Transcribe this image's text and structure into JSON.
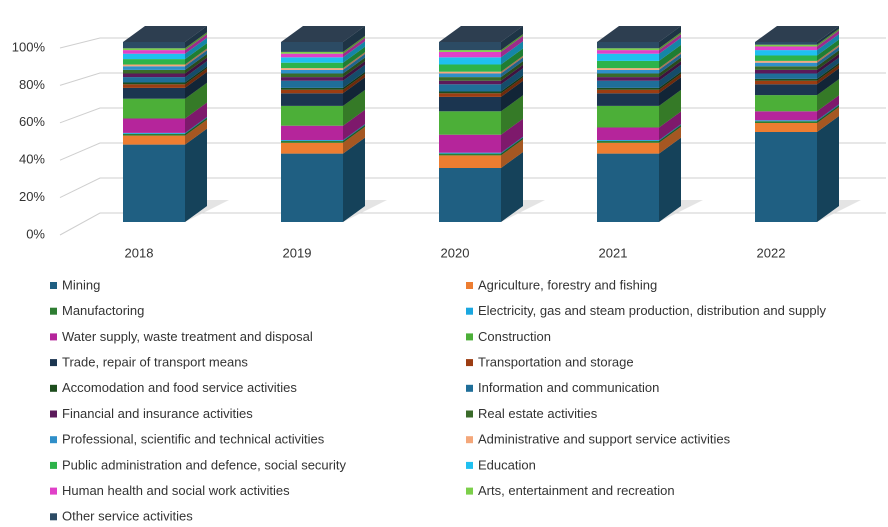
{
  "chart_data": {
    "type": "bar3d_stacked",
    "categories": [
      "2018",
      "2019",
      "2020",
      "2021",
      "2022"
    ],
    "ylim": [
      0,
      100
    ],
    "yticks": [
      {
        "value": 0,
        "label": "0%"
      },
      {
        "value": 20,
        "label": "20%"
      },
      {
        "value": 40,
        "label": "40%"
      },
      {
        "value": 60,
        "label": "60%"
      },
      {
        "value": 80,
        "label": "80%"
      },
      {
        "value": 100,
        "label": "100%"
      }
    ],
    "grid": true,
    "legend": "bottom",
    "series": [
      {
        "name": "Mining",
        "color": "#1f5f82",
        "values": [
          43,
          38,
          30,
          38,
          50
        ]
      },
      {
        "name": "Agriculture, forestry and fishing",
        "color": "#ed7d31",
        "values": [
          5,
          6,
          7,
          6,
          5
        ]
      },
      {
        "name": "Manufactoring",
        "color": "#2e7d32",
        "values": [
          1,
          1,
          1,
          1,
          1
        ]
      },
      {
        "name": "Electricity, gas and steam production, distribution and supply",
        "color": "#1aa7e0",
        "values": [
          0.5,
          0.5,
          0.5,
          0.5,
          0.5
        ]
      },
      {
        "name": "Water supply, waste treatment and disposal",
        "color": "#b5259b",
        "values": [
          8,
          8,
          10,
          7,
          5
        ]
      },
      {
        "name": "Construction",
        "color": "#4caf38",
        "values": [
          11,
          11,
          13,
          12,
          9
        ]
      },
      {
        "name": "Trade, repair of transport means",
        "color": "#1b3550",
        "values": [
          6,
          7,
          8,
          7,
          6
        ]
      },
      {
        "name": "Transportation and storage",
        "color": "#9c3d12",
        "values": [
          2,
          2,
          2,
          2,
          2
        ]
      },
      {
        "name": "Accomodation and food service activities",
        "color": "#1d4d1d",
        "values": [
          1,
          1,
          1,
          1,
          1
        ]
      },
      {
        "name": "Information and communication",
        "color": "#1f6e99",
        "values": [
          3,
          4,
          4,
          4,
          3
        ]
      },
      {
        "name": "Financial and insurance activities",
        "color": "#5b1a5a",
        "values": [
          2,
          2,
          2,
          2,
          2
        ]
      },
      {
        "name": "Real estate activities",
        "color": "#3a6b2a",
        "values": [
          2,
          2,
          2,
          2,
          2
        ]
      },
      {
        "name": "Professional, scientific and technical activities",
        "color": "#2f8fc9",
        "values": [
          2,
          2,
          2,
          2,
          2
        ]
      },
      {
        "name": "Administrative and support service activities",
        "color": "#f4a77a",
        "values": [
          1,
          1,
          1,
          1,
          1
        ]
      },
      {
        "name": "Public administration and defence, social security",
        "color": "#2db34a",
        "values": [
          3,
          3,
          4,
          4,
          3
        ]
      },
      {
        "name": "Education",
        "color": "#1fc0f0",
        "values": [
          3,
          3,
          4,
          4,
          3
        ]
      },
      {
        "name": "Human health and social work activities",
        "color": "#e040c8",
        "values": [
          2,
          2,
          3,
          2,
          2
        ]
      },
      {
        "name": "Arts, entertainment and recreation",
        "color": "#7ccf4a",
        "values": [
          1,
          1,
          1,
          1,
          1
        ]
      },
      {
        "name": "Other service activities",
        "color": "#2c4b64",
        "values": [
          3.5,
          5.5,
          4.5,
          3.5,
          1.5
        ]
      }
    ]
  }
}
